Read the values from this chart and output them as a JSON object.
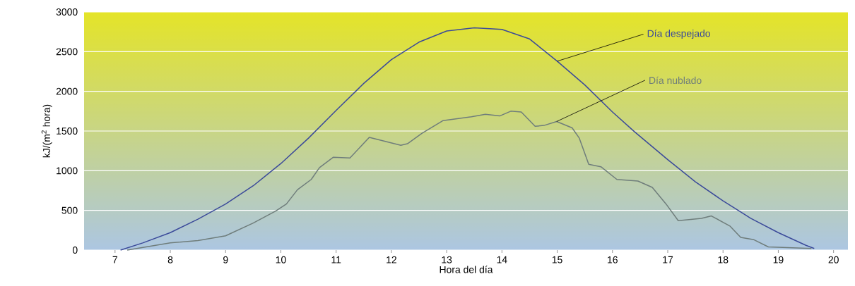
{
  "chart_data": {
    "type": "line",
    "xlabel": "Hora del día",
    "ylabel": "kJ/(m$^{2}$ hora)",
    "xlim": [
      6.44,
      20.26
    ],
    "ylim": [
      0,
      3000
    ],
    "xticks": [
      7,
      8,
      9,
      10,
      11,
      12,
      13,
      14,
      15,
      16,
      17,
      18,
      19,
      20
    ],
    "yticks": [
      0,
      500,
      1000,
      1500,
      2000,
      2500,
      3000
    ],
    "grid": "y",
    "series": [
      {
        "name": "Día despejado",
        "color": "#3b4a9a",
        "x": [
          7.1,
          7.5,
          8,
          8.5,
          9,
          9.5,
          10,
          10.5,
          11,
          11.5,
          12,
          12.5,
          13,
          13.5,
          14,
          14.5,
          15,
          15.5,
          16,
          16.4,
          17,
          17.5,
          18,
          18.3,
          18.5,
          19,
          19.5,
          19.65
        ],
        "values": [
          0,
          90,
          220,
          390,
          580,
          810,
          1090,
          1410,
          1760,
          2100,
          2400,
          2620,
          2760,
          2800,
          2780,
          2660,
          2380,
          2080,
          1740,
          1490,
          1140,
          860,
          620,
          490,
          400,
          220,
          60,
          20
        ]
      },
      {
        "name": "Día nublado",
        "color": "#6f7d7b",
        "x": [
          7.22,
          8,
          8.5,
          9,
          9.5,
          9.9,
          10.1,
          10.3,
          10.55,
          10.7,
          10.95,
          11.25,
          11.6,
          12.17,
          12.29,
          12.55,
          12.93,
          13.45,
          13.7,
          13.96,
          14.16,
          14.35,
          14.6,
          14.76,
          14.99,
          15.27,
          15.4,
          15.57,
          15.79,
          16.08,
          16.46,
          16.72,
          16.97,
          17.19,
          17.61,
          17.79,
          18.13,
          18.32,
          18.56,
          18.82,
          19.6
        ],
        "values": [
          0,
          90,
          120,
          180,
          340,
          490,
          580,
          760,
          890,
          1040,
          1170,
          1160,
          1420,
          1320,
          1340,
          1470,
          1630,
          1680,
          1710,
          1690,
          1750,
          1740,
          1560,
          1570,
          1620,
          1540,
          1410,
          1080,
          1050,
          890,
          870,
          790,
          580,
          370,
          400,
          430,
          300,
          160,
          130,
          40,
          20
        ]
      }
    ]
  }
}
